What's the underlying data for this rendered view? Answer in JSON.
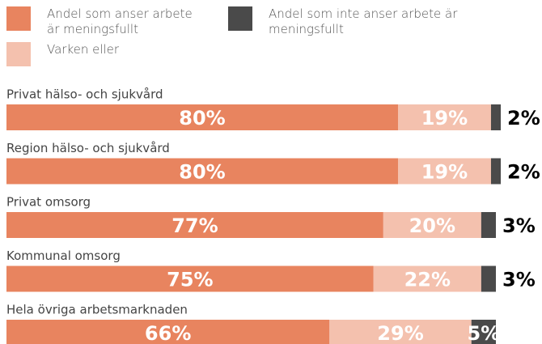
{
  "chart_data": {
    "type": "stacked-bar-horizontal",
    "categories": [
      "Privat hälso- och sjukvård",
      "Region hälso- och sjukvård",
      "Privat omsorg",
      "Kommunal omsorg",
      "Hela övriga arbetsmarknaden"
    ],
    "series": [
      {
        "name": "Andel som anser arbete är meningsfullt",
        "color": "#e8845f",
        "values": [
          80,
          80,
          77,
          75,
          66
        ],
        "value_labels": [
          "80%",
          "80%",
          "77%",
          "75%",
          "66%"
        ]
      },
      {
        "name": "Varken eller",
        "color": "#f4c1ae",
        "values": [
          19,
          19,
          20,
          22,
          29
        ],
        "value_labels": [
          "19%",
          "19%",
          "20%",
          "22%",
          "29%"
        ]
      },
      {
        "name": "Andel som inte anser arbete är meningsfullt",
        "color": "#4a4a4a",
        "values": [
          2,
          2,
          3,
          3,
          5
        ],
        "value_labels": [
          "2%",
          "2%",
          "3%",
          "3%",
          "5%"
        ]
      }
    ],
    "legend": "top"
  }
}
